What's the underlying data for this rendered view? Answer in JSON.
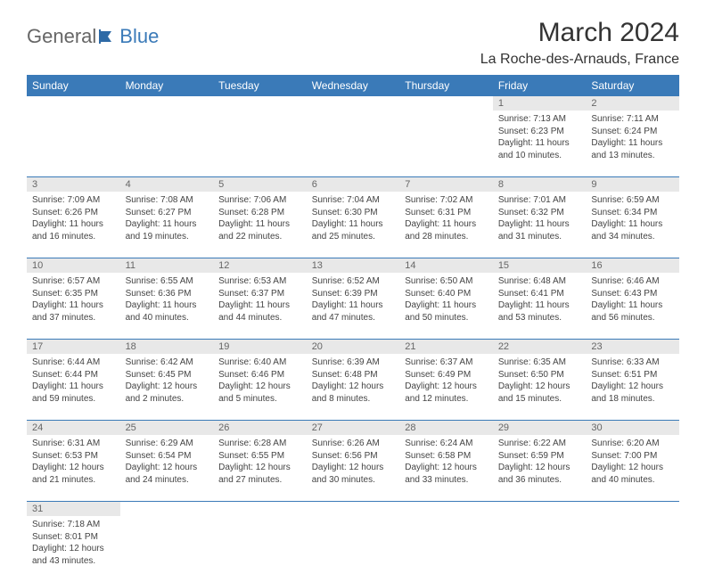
{
  "logo": {
    "part1": "General",
    "part2": "Blue"
  },
  "title": "March 2024",
  "location": "La Roche-des-Arnauds, France",
  "colors": {
    "header_bg": "#3a7ab8",
    "header_text": "#ffffff",
    "daynum_bg": "#e8e8e8",
    "border": "#3a7ab8",
    "text": "#444444"
  },
  "day_headers": [
    "Sunday",
    "Monday",
    "Tuesday",
    "Wednesday",
    "Thursday",
    "Friday",
    "Saturday"
  ],
  "weeks": [
    [
      {
        "n": "",
        "sr": "",
        "ss": "",
        "dl": ""
      },
      {
        "n": "",
        "sr": "",
        "ss": "",
        "dl": ""
      },
      {
        "n": "",
        "sr": "",
        "ss": "",
        "dl": ""
      },
      {
        "n": "",
        "sr": "",
        "ss": "",
        "dl": ""
      },
      {
        "n": "",
        "sr": "",
        "ss": "",
        "dl": ""
      },
      {
        "n": "1",
        "sr": "Sunrise: 7:13 AM",
        "ss": "Sunset: 6:23 PM",
        "dl": "Daylight: 11 hours and 10 minutes."
      },
      {
        "n": "2",
        "sr": "Sunrise: 7:11 AM",
        "ss": "Sunset: 6:24 PM",
        "dl": "Daylight: 11 hours and 13 minutes."
      }
    ],
    [
      {
        "n": "3",
        "sr": "Sunrise: 7:09 AM",
        "ss": "Sunset: 6:26 PM",
        "dl": "Daylight: 11 hours and 16 minutes."
      },
      {
        "n": "4",
        "sr": "Sunrise: 7:08 AM",
        "ss": "Sunset: 6:27 PM",
        "dl": "Daylight: 11 hours and 19 minutes."
      },
      {
        "n": "5",
        "sr": "Sunrise: 7:06 AM",
        "ss": "Sunset: 6:28 PM",
        "dl": "Daylight: 11 hours and 22 minutes."
      },
      {
        "n": "6",
        "sr": "Sunrise: 7:04 AM",
        "ss": "Sunset: 6:30 PM",
        "dl": "Daylight: 11 hours and 25 minutes."
      },
      {
        "n": "7",
        "sr": "Sunrise: 7:02 AM",
        "ss": "Sunset: 6:31 PM",
        "dl": "Daylight: 11 hours and 28 minutes."
      },
      {
        "n": "8",
        "sr": "Sunrise: 7:01 AM",
        "ss": "Sunset: 6:32 PM",
        "dl": "Daylight: 11 hours and 31 minutes."
      },
      {
        "n": "9",
        "sr": "Sunrise: 6:59 AM",
        "ss": "Sunset: 6:34 PM",
        "dl": "Daylight: 11 hours and 34 minutes."
      }
    ],
    [
      {
        "n": "10",
        "sr": "Sunrise: 6:57 AM",
        "ss": "Sunset: 6:35 PM",
        "dl": "Daylight: 11 hours and 37 minutes."
      },
      {
        "n": "11",
        "sr": "Sunrise: 6:55 AM",
        "ss": "Sunset: 6:36 PM",
        "dl": "Daylight: 11 hours and 40 minutes."
      },
      {
        "n": "12",
        "sr": "Sunrise: 6:53 AM",
        "ss": "Sunset: 6:37 PM",
        "dl": "Daylight: 11 hours and 44 minutes."
      },
      {
        "n": "13",
        "sr": "Sunrise: 6:52 AM",
        "ss": "Sunset: 6:39 PM",
        "dl": "Daylight: 11 hours and 47 minutes."
      },
      {
        "n": "14",
        "sr": "Sunrise: 6:50 AM",
        "ss": "Sunset: 6:40 PM",
        "dl": "Daylight: 11 hours and 50 minutes."
      },
      {
        "n": "15",
        "sr": "Sunrise: 6:48 AM",
        "ss": "Sunset: 6:41 PM",
        "dl": "Daylight: 11 hours and 53 minutes."
      },
      {
        "n": "16",
        "sr": "Sunrise: 6:46 AM",
        "ss": "Sunset: 6:43 PM",
        "dl": "Daylight: 11 hours and 56 minutes."
      }
    ],
    [
      {
        "n": "17",
        "sr": "Sunrise: 6:44 AM",
        "ss": "Sunset: 6:44 PM",
        "dl": "Daylight: 11 hours and 59 minutes."
      },
      {
        "n": "18",
        "sr": "Sunrise: 6:42 AM",
        "ss": "Sunset: 6:45 PM",
        "dl": "Daylight: 12 hours and 2 minutes."
      },
      {
        "n": "19",
        "sr": "Sunrise: 6:40 AM",
        "ss": "Sunset: 6:46 PM",
        "dl": "Daylight: 12 hours and 5 minutes."
      },
      {
        "n": "20",
        "sr": "Sunrise: 6:39 AM",
        "ss": "Sunset: 6:48 PM",
        "dl": "Daylight: 12 hours and 8 minutes."
      },
      {
        "n": "21",
        "sr": "Sunrise: 6:37 AM",
        "ss": "Sunset: 6:49 PM",
        "dl": "Daylight: 12 hours and 12 minutes."
      },
      {
        "n": "22",
        "sr": "Sunrise: 6:35 AM",
        "ss": "Sunset: 6:50 PM",
        "dl": "Daylight: 12 hours and 15 minutes."
      },
      {
        "n": "23",
        "sr": "Sunrise: 6:33 AM",
        "ss": "Sunset: 6:51 PM",
        "dl": "Daylight: 12 hours and 18 minutes."
      }
    ],
    [
      {
        "n": "24",
        "sr": "Sunrise: 6:31 AM",
        "ss": "Sunset: 6:53 PM",
        "dl": "Daylight: 12 hours and 21 minutes."
      },
      {
        "n": "25",
        "sr": "Sunrise: 6:29 AM",
        "ss": "Sunset: 6:54 PM",
        "dl": "Daylight: 12 hours and 24 minutes."
      },
      {
        "n": "26",
        "sr": "Sunrise: 6:28 AM",
        "ss": "Sunset: 6:55 PM",
        "dl": "Daylight: 12 hours and 27 minutes."
      },
      {
        "n": "27",
        "sr": "Sunrise: 6:26 AM",
        "ss": "Sunset: 6:56 PM",
        "dl": "Daylight: 12 hours and 30 minutes."
      },
      {
        "n": "28",
        "sr": "Sunrise: 6:24 AM",
        "ss": "Sunset: 6:58 PM",
        "dl": "Daylight: 12 hours and 33 minutes."
      },
      {
        "n": "29",
        "sr": "Sunrise: 6:22 AM",
        "ss": "Sunset: 6:59 PM",
        "dl": "Daylight: 12 hours and 36 minutes."
      },
      {
        "n": "30",
        "sr": "Sunrise: 6:20 AM",
        "ss": "Sunset: 7:00 PM",
        "dl": "Daylight: 12 hours and 40 minutes."
      }
    ],
    [
      {
        "n": "31",
        "sr": "Sunrise: 7:18 AM",
        "ss": "Sunset: 8:01 PM",
        "dl": "Daylight: 12 hours and 43 minutes."
      },
      {
        "n": "",
        "sr": "",
        "ss": "",
        "dl": ""
      },
      {
        "n": "",
        "sr": "",
        "ss": "",
        "dl": ""
      },
      {
        "n": "",
        "sr": "",
        "ss": "",
        "dl": ""
      },
      {
        "n": "",
        "sr": "",
        "ss": "",
        "dl": ""
      },
      {
        "n": "",
        "sr": "",
        "ss": "",
        "dl": ""
      },
      {
        "n": "",
        "sr": "",
        "ss": "",
        "dl": ""
      }
    ]
  ]
}
